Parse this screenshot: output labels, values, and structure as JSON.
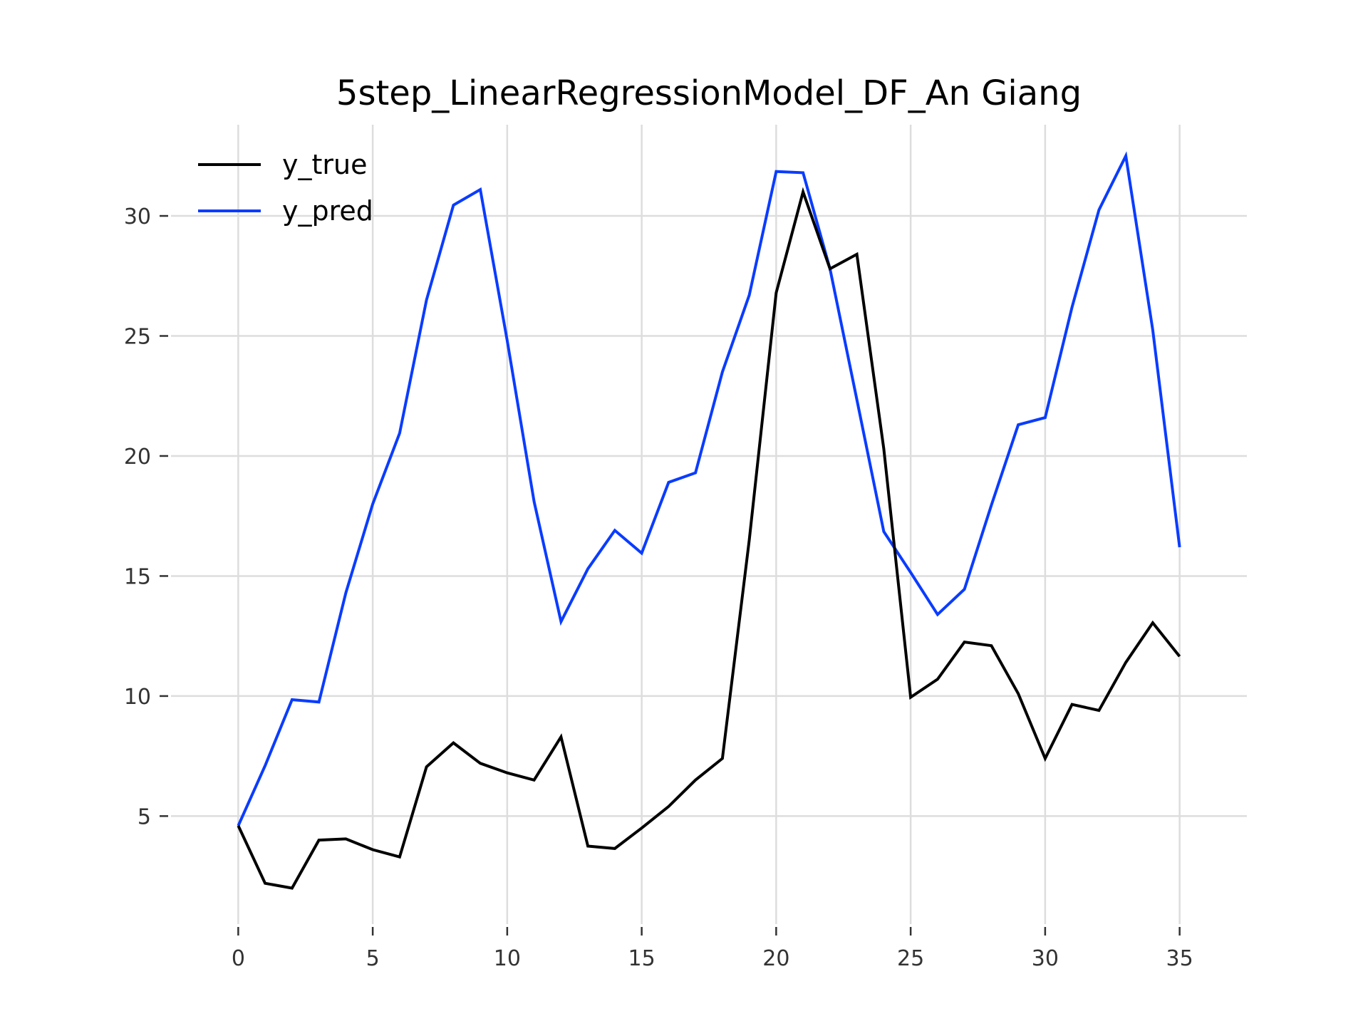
{
  "chart_data": {
    "type": "line",
    "title": "5step_LinearRegressionModel_DF_An Giang",
    "xlabel": "",
    "ylabel": "",
    "xlim": [
      -2.5,
      37.5
    ],
    "ylim": [
      0.5,
      33.8
    ],
    "x_ticks": [
      0,
      5,
      10,
      15,
      20,
      25,
      30,
      35
    ],
    "y_ticks": [
      5,
      10,
      15,
      20,
      25,
      30
    ],
    "grid": true,
    "legend_position": "top-left",
    "x": [
      0,
      1,
      2,
      3,
      4,
      5,
      6,
      7,
      8,
      9,
      10,
      11,
      12,
      13,
      14,
      15,
      16,
      17,
      18,
      19,
      20,
      21,
      22,
      23,
      24,
      25,
      26,
      27,
      28,
      29,
      30,
      31,
      32,
      33,
      34,
      35
    ],
    "series": [
      {
        "name": "y_true",
        "color": "#000000",
        "values": [
          4.6,
          2.2,
          2.0,
          4.0,
          4.05,
          3.6,
          3.3,
          7.05,
          8.05,
          7.2,
          6.8,
          6.5,
          8.3,
          3.75,
          3.65,
          4.5,
          5.4,
          6.5,
          7.4,
          16.5,
          26.8,
          31.0,
          27.8,
          28.4,
          20.3,
          9.95,
          10.7,
          12.25,
          12.1,
          10.1,
          7.4,
          9.65,
          9.4,
          11.4,
          13.05,
          11.65
        ]
      },
      {
        "name": "y_pred",
        "color": "#0a3cff",
        "values": [
          4.6,
          7.1,
          9.85,
          9.75,
          14.3,
          18.0,
          20.95,
          26.5,
          30.45,
          31.1,
          24.8,
          18.1,
          13.1,
          15.3,
          16.9,
          15.95,
          18.9,
          19.3,
          23.5,
          26.7,
          31.85,
          31.8,
          27.8,
          22.35,
          16.85,
          15.15,
          13.4,
          14.45,
          17.95,
          21.3,
          21.6,
          26.2,
          30.25,
          32.5,
          25.25,
          16.2
        ]
      }
    ]
  }
}
